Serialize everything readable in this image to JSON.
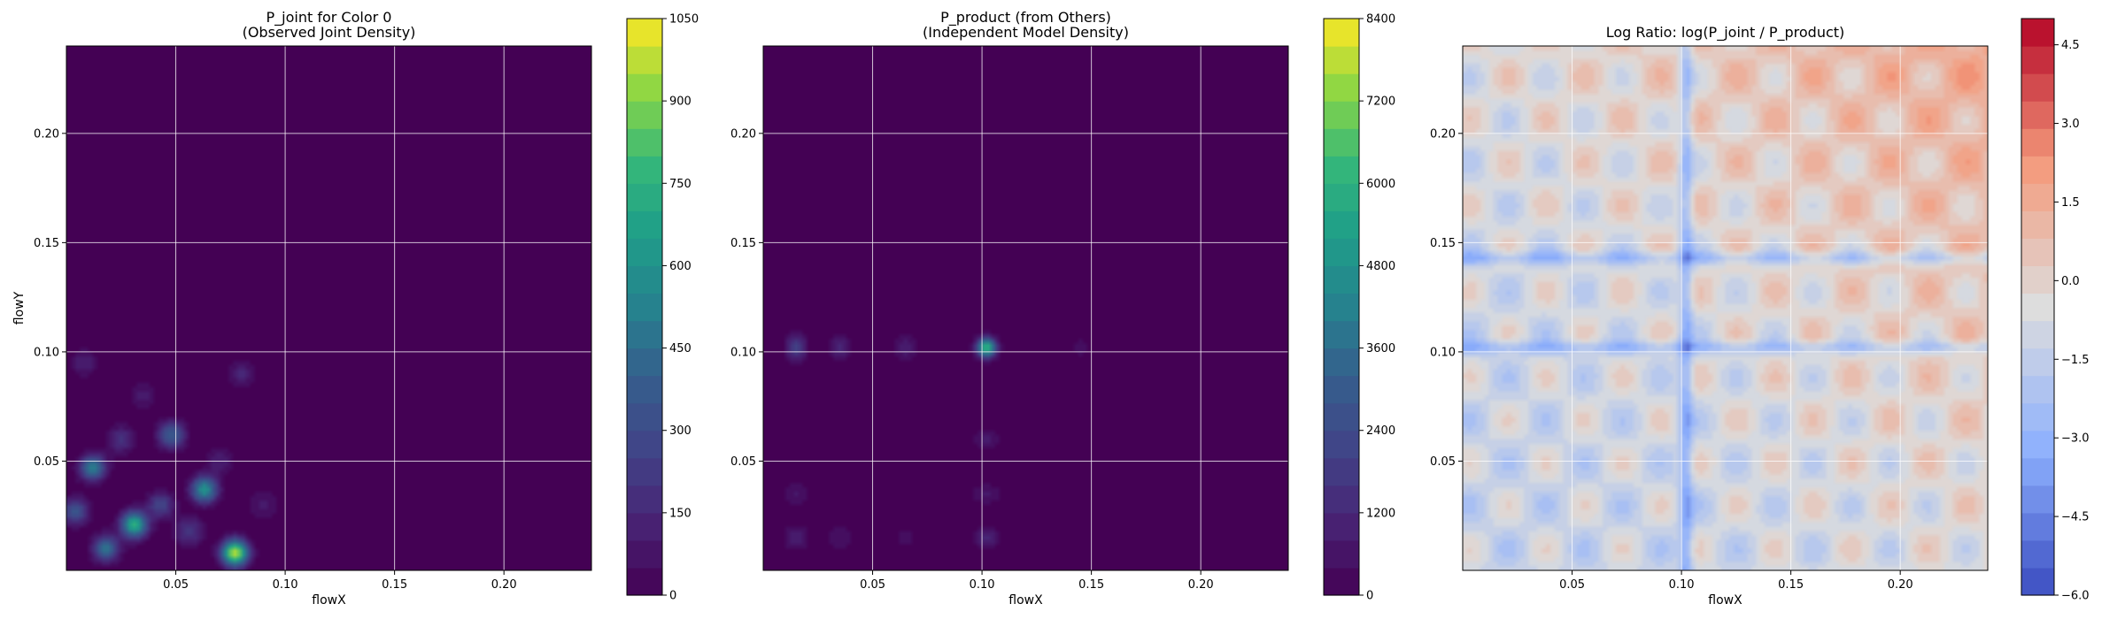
{
  "chart_data": [
    {
      "type": "heatmap",
      "title": "P_joint for Color 0\n(Observed Joint Density)",
      "xlabel": "flowX",
      "ylabel": "flowY",
      "xlim": [
        0.0,
        0.24
      ],
      "ylim": [
        0.0,
        0.24
      ],
      "x_ticks": [
        "0.05",
        "0.10",
        "0.15",
        "0.20"
      ],
      "y_ticks": [
        "0.05",
        "0.10",
        "0.15",
        "0.20"
      ],
      "grid": true,
      "colormap": "viridis",
      "colorbar": {
        "min": 0,
        "max": 1050,
        "ticks": [
          "0",
          "150",
          "300",
          "450",
          "600",
          "750",
          "900",
          "1050"
        ]
      },
      "peaks": [
        {
          "x": 0.077,
          "y": 0.008,
          "value": 1000
        },
        {
          "x": 0.031,
          "y": 0.021,
          "value": 760
        },
        {
          "x": 0.063,
          "y": 0.037,
          "value": 620
        },
        {
          "x": 0.012,
          "y": 0.047,
          "value": 520
        },
        {
          "x": 0.018,
          "y": 0.01,
          "value": 480
        },
        {
          "x": 0.048,
          "y": 0.062,
          "value": 420
        },
        {
          "x": 0.004,
          "y": 0.027,
          "value": 360
        },
        {
          "x": 0.043,
          "y": 0.03,
          "value": 300
        },
        {
          "x": 0.056,
          "y": 0.018,
          "value": 260
        },
        {
          "x": 0.025,
          "y": 0.06,
          "value": 220
        },
        {
          "x": 0.08,
          "y": 0.09,
          "value": 160
        },
        {
          "x": 0.008,
          "y": 0.095,
          "value": 150
        },
        {
          "x": 0.07,
          "y": 0.05,
          "value": 150
        },
        {
          "x": 0.035,
          "y": 0.08,
          "value": 120
        },
        {
          "x": 0.09,
          "y": 0.03,
          "value": 130
        }
      ]
    },
    {
      "type": "heatmap",
      "title": "P_product (from Others)\n(Independent Model Density)",
      "xlabel": "flowX",
      "ylabel": "",
      "xlim": [
        0.0,
        0.24
      ],
      "ylim": [
        0.0,
        0.24
      ],
      "x_ticks": [
        "0.05",
        "0.10",
        "0.15",
        "0.20"
      ],
      "y_ticks": [
        "0.05",
        "0.10",
        "0.15",
        "0.20"
      ],
      "grid": true,
      "colormap": "viridis",
      "colorbar": {
        "min": 0,
        "max": 8400,
        "ticks": [
          "0",
          "1200",
          "2400",
          "3600",
          "4800",
          "6000",
          "7200",
          "8400"
        ]
      },
      "peaks": [
        {
          "x": 0.102,
          "y": 0.102,
          "value": 6200
        },
        {
          "x": 0.015,
          "y": 0.102,
          "value": 2400
        },
        {
          "x": 0.035,
          "y": 0.102,
          "value": 1500
        },
        {
          "x": 0.065,
          "y": 0.102,
          "value": 1200
        },
        {
          "x": 0.102,
          "y": 0.015,
          "value": 1500
        },
        {
          "x": 0.102,
          "y": 0.035,
          "value": 1000
        },
        {
          "x": 0.102,
          "y": 0.06,
          "value": 900
        },
        {
          "x": 0.015,
          "y": 0.015,
          "value": 1000
        },
        {
          "x": 0.015,
          "y": 0.035,
          "value": 800
        },
        {
          "x": 0.035,
          "y": 0.015,
          "value": 700
        },
        {
          "x": 0.065,
          "y": 0.015,
          "value": 600
        },
        {
          "x": 0.145,
          "y": 0.102,
          "value": 600
        }
      ]
    },
    {
      "type": "heatmap",
      "title": "Log Ratio: log(P_joint / P_product)",
      "xlabel": "flowX",
      "ylabel": "",
      "xlim": [
        0.0,
        0.24
      ],
      "ylim": [
        0.0,
        0.24
      ],
      "x_ticks": [
        "0.05",
        "0.10",
        "0.15",
        "0.20"
      ],
      "y_ticks": [
        "0.05",
        "0.10",
        "0.15",
        "0.20"
      ],
      "grid": true,
      "colormap": "coolwarm",
      "colorbar": {
        "min": -6.0,
        "max": 5.0,
        "ticks": [
          "−6.0",
          "−4.5",
          "−3.0",
          "−1.5",
          "0.0",
          "1.5",
          "3.0",
          "4.5"
        ]
      },
      "trend": "log ratio increases toward larger flowX and flowY (up to ~4.5 at top-right), strongly negative (~−3) bands along flowX≈0.102 and flowY≈0.102, 0.143"
    }
  ]
}
